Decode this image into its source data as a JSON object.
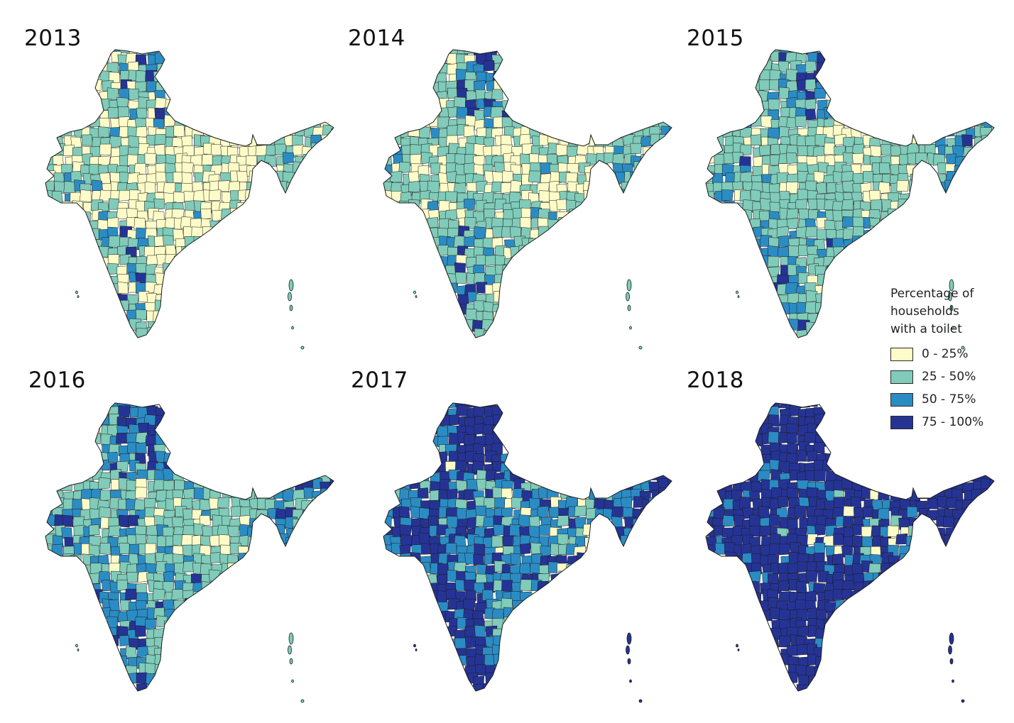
{
  "panels": [
    {
      "year": "2013",
      "mix": [
        0.47,
        0.33,
        0.12,
        0.08
      ]
    },
    {
      "year": "2014",
      "mix": [
        0.33,
        0.4,
        0.17,
        0.1
      ]
    },
    {
      "year": "2015",
      "mix": [
        0.22,
        0.45,
        0.2,
        0.13
      ]
    },
    {
      "year": "2016",
      "mix": [
        0.14,
        0.38,
        0.25,
        0.23
      ]
    },
    {
      "year": "2017",
      "mix": [
        0.06,
        0.17,
        0.29,
        0.48
      ]
    },
    {
      "year": "2018",
      "mix": [
        0.0,
        0.05,
        0.17,
        0.78
      ]
    }
  ],
  "legend": {
    "title_lines": [
      "Percentage of",
      "households",
      "with a toilet"
    ],
    "items": [
      {
        "label": "0 - 25%",
        "color": "#fdfbc8"
      },
      {
        "label": "25 - 50%",
        "color": "#80cbb9"
      },
      {
        "label": "50 - 75%",
        "color": "#2b8cc4"
      },
      {
        "label": "75 - 100%",
        "color": "#253494"
      }
    ]
  },
  "border_color": "#1a1a1a"
}
